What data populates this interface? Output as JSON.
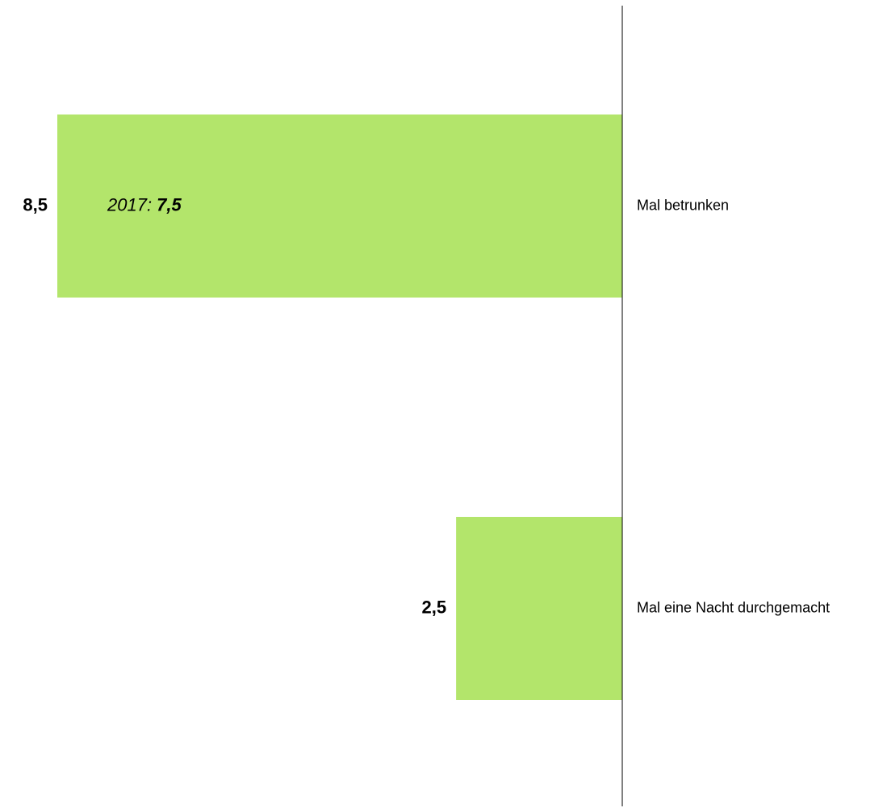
{
  "chart_data": {
    "type": "bar",
    "orientation": "horizontal",
    "direction": "right-to-left",
    "categories": [
      "Mal betrunken",
      "Mal eine Nacht durchgemacht"
    ],
    "values": [
      8.5,
      2.5
    ],
    "value_labels": [
      "8,5",
      "2,5"
    ],
    "comparison_labels": [
      {
        "prefix": "2017: ",
        "value": 7.5,
        "value_label": "7,5"
      },
      null
    ],
    "xlim": [
      0,
      8.5
    ],
    "grid": false,
    "legend": "none",
    "colors": {
      "bar": "#b3e56b",
      "axis": "#000000",
      "text": "#000000"
    }
  }
}
